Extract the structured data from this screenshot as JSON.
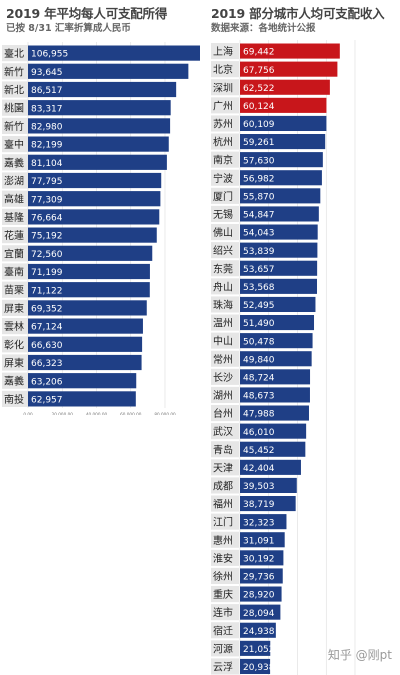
{
  "watermark": "知乎 @刚pt",
  "colors": {
    "bar": "#1f3f86",
    "highlight": "#c8161b",
    "label_bg": "#e6e6e6",
    "grid": "#dddddd"
  },
  "chart_data": [
    {
      "type": "bar",
      "orientation": "horizontal",
      "title": "2019 年平均每人可支配所得",
      "subtitle": "已按 8/31 汇率折算成人民币",
      "xlim": [
        0,
        80000
      ],
      "ticks": [
        "0.00",
        "20,000.00",
        "40,000.00",
        "60,000.00",
        "80,000.00"
      ],
      "tick_values": [
        0,
        20000,
        40000,
        60000,
        80000
      ],
      "categories": [
        "臺北",
        "新竹",
        "新北",
        "桃園",
        "新竹",
        "臺中",
        "嘉義",
        "澎湖",
        "高雄",
        "基隆",
        "花蓮",
        "宜蘭",
        "臺南",
        "苗栗",
        "屏東",
        "雲林",
        "彰化",
        "屏東",
        "嘉義",
        "南投"
      ],
      "values": [
        106955,
        93645,
        86517,
        83317,
        82980,
        82199,
        81104,
        77795,
        77309,
        76664,
        75192,
        72560,
        71199,
        71122,
        69352,
        67124,
        66630,
        66323,
        63206,
        62957
      ],
      "value_labels": [
        "106,955",
        "93,645",
        "86,517",
        "83,317",
        "82,980",
        "82,199",
        "81,104",
        "77,795",
        "77,309",
        "76,664",
        "75,192",
        "72,560",
        "71,199",
        "71,122",
        "69,352",
        "67,124",
        "66,630",
        "66,323",
        "63,206",
        "62,957"
      ],
      "highlight_count": 0
    },
    {
      "type": "bar",
      "orientation": "horizontal",
      "title": "2019 部分城市人均可支配收入",
      "subtitle": "数据来源：各地统计公报",
      "xlim": [
        0,
        80000
      ],
      "ticks": [
        "0.00",
        "20,000.00",
        "40,000.00",
        "60,000.00",
        "80,000.00"
      ],
      "tick_values": [
        0,
        20000,
        40000,
        60000,
        80000
      ],
      "categories": [
        "上海",
        "北京",
        "深圳",
        "广州",
        "苏州",
        "杭州",
        "南京",
        "宁波",
        "厦门",
        "无锡",
        "佛山",
        "绍兴",
        "东莞",
        "舟山",
        "珠海",
        "温州",
        "中山",
        "常州",
        "长沙",
        "湖州",
        "台州",
        "武汉",
        "青岛",
        "天津",
        "成都",
        "福州",
        "江门",
        "惠州",
        "淮安",
        "徐州",
        "重庆",
        "连市",
        "宿迁",
        "河源",
        "云浮"
      ],
      "values": [
        69442,
        67756,
        62522,
        60124,
        60109,
        59261,
        57630,
        56982,
        55870,
        54847,
        54043,
        53839,
        53657,
        53568,
        52495,
        51490,
        50478,
        49840,
        48724,
        48673,
        47988,
        46010,
        45452,
        42404,
        39503,
        38719,
        32323,
        31091,
        30192,
        29736,
        28920,
        28094,
        24938,
        21052,
        20938
      ],
      "value_labels": [
        "69,442",
        "67,756",
        "62,522",
        "60,124",
        "60,109",
        "59,261",
        "57,630",
        "56,982",
        "55,870",
        "54,847",
        "54,043",
        "53,839",
        "53,657",
        "53,568",
        "52,495",
        "51,490",
        "50,478",
        "49,840",
        "48,724",
        "48,673",
        "47,988",
        "46,010",
        "45,452",
        "42,404",
        "39,503",
        "38,719",
        "32,323",
        "31,091",
        "30,192",
        "29,736",
        "28,920",
        "28,094",
        "24,938",
        "21,052",
        "20,938"
      ],
      "highlight_count": 4
    }
  ]
}
